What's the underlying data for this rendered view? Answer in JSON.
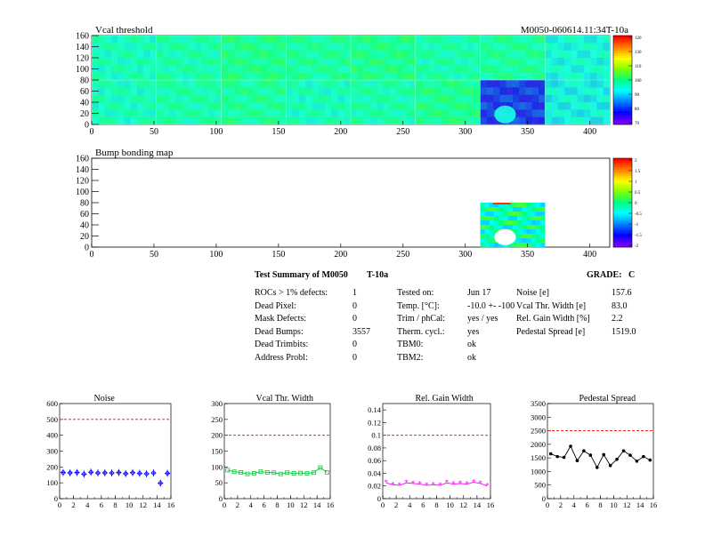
{
  "module_id": "M0050-060614.11:34T-10a",
  "chart_data": [
    {
      "type": "heatmap",
      "title": "Vcal threshold",
      "xlim": [
        0,
        416
      ],
      "ylim": [
        0,
        160
      ],
      "x_ticks": [
        0,
        50,
        100,
        150,
        200,
        250,
        300,
        350,
        400
      ],
      "y_ticks": [
        0,
        20,
        40,
        60,
        80,
        100,
        120,
        140,
        160
      ],
      "color_scale": {
        "ticks": [
          "120",
          "130",
          "110",
          "100",
          "90",
          "80",
          "70"
        ],
        "stops": [
          "#ff0000",
          "#ff8000",
          "#ffff00",
          "#80ff00",
          "#00ff80",
          "#00ffff",
          "#0080ff",
          "#0000ff",
          "#8000ff"
        ]
      },
      "rocs": [
        {
          "roc": 0,
          "value": 95
        },
        {
          "roc": 1,
          "value": 96
        },
        {
          "roc": 2,
          "value": 97
        },
        {
          "roc": 3,
          "value": 95
        },
        {
          "roc": 4,
          "value": 96
        },
        {
          "roc": 5,
          "value": 98
        },
        {
          "roc": 6,
          "value": 80
        },
        {
          "roc": 7,
          "value": 92
        },
        {
          "roc": 8,
          "value": 93
        },
        {
          "roc": 9,
          "value": 97
        },
        {
          "roc": 10,
          "value": 96
        },
        {
          "roc": 11,
          "value": 98
        },
        {
          "roc": 12,
          "value": 97
        },
        {
          "roc": 13,
          "value": 98
        },
        {
          "roc": 14,
          "value": 96
        },
        {
          "roc": 15,
          "value": 95
        }
      ]
    },
    {
      "type": "heatmap",
      "title": "Bump bonding map",
      "xlim": [
        0,
        416
      ],
      "ylim": [
        0,
        160
      ],
      "x_ticks": [
        0,
        50,
        100,
        150,
        200,
        250,
        300,
        350,
        400
      ],
      "y_ticks": [
        0,
        20,
        40,
        60,
        80,
        100,
        120,
        140,
        160
      ],
      "color_scale": {
        "ticks": [
          "2",
          "1.5",
          "1",
          "0.5",
          "0",
          "-0.5",
          "-1",
          "-1.5",
          "-2"
        ],
        "stops": [
          "#ff0000",
          "#ff8000",
          "#ffff00",
          "#80ff00",
          "#00ff80",
          "#00ffff",
          "#0080ff",
          "#0000ff",
          "#8000ff"
        ]
      }
    },
    {
      "type": "line",
      "title": "Noise",
      "x": [
        0,
        1,
        2,
        3,
        4,
        5,
        6,
        7,
        8,
        9,
        10,
        11,
        12,
        13,
        14,
        15
      ],
      "values": [
        165,
        163,
        165,
        155,
        167,
        162,
        163,
        162,
        165,
        158,
        164,
        160,
        157,
        162,
        98,
        160
      ],
      "xlim": [
        0,
        16
      ],
      "ylim": [
        0,
        600
      ],
      "x_ticks": [
        0,
        2,
        4,
        6,
        8,
        10,
        12,
        14,
        16
      ],
      "y_ticks": [
        0,
        100,
        200,
        300,
        400,
        500,
        600
      ],
      "threshold": 500,
      "color": "#0000ff",
      "marker": "diamond",
      "connected": false
    },
    {
      "type": "line",
      "title": "Vcal Thr. Width",
      "x": [
        0,
        1,
        2,
        3,
        4,
        5,
        6,
        7,
        8,
        9,
        10,
        11,
        12,
        13,
        14,
        15
      ],
      "values": [
        90,
        85,
        83,
        78,
        80,
        85,
        83,
        82,
        78,
        82,
        80,
        81,
        80,
        82,
        98,
        83
      ],
      "xlim": [
        0,
        16
      ],
      "ylim": [
        0,
        300
      ],
      "x_ticks": [
        0,
        2,
        4,
        6,
        8,
        10,
        12,
        14,
        16
      ],
      "y_ticks": [
        0,
        50,
        100,
        150,
        200,
        250,
        300
      ],
      "threshold": 200,
      "color": "#00cc33",
      "marker": "square",
      "connected": true
    },
    {
      "type": "line",
      "title": "Rel. Gain Width",
      "x": [
        0,
        1,
        2,
        3,
        4,
        5,
        6,
        7,
        8,
        9,
        10,
        11,
        12,
        13,
        14,
        15
      ],
      "values": [
        0.025,
        0.022,
        0.021,
        0.025,
        0.024,
        0.023,
        0.021,
        0.022,
        0.021,
        0.025,
        0.023,
        0.024,
        0.023,
        0.026,
        0.024,
        0.02
      ],
      "xlim": [
        0,
        16
      ],
      "ylim": [
        0,
        0.15
      ],
      "x_ticks": [
        0,
        2,
        4,
        6,
        8,
        10,
        12,
        14,
        16
      ],
      "y_ticks": [
        0,
        0.02,
        0.04,
        0.06,
        0.08,
        0.1,
        0.12,
        0.14
      ],
      "y_tick_labels": [
        "0",
        "0.02",
        "0.04",
        "0.06",
        "0.08",
        "0.1",
        "0.12",
        "0.14"
      ],
      "threshold": 0.1,
      "color": "#ff00ff",
      "marker": "star",
      "connected": true
    },
    {
      "type": "line",
      "title": "Pedestal Spread",
      "x": [
        0,
        1,
        2,
        3,
        4,
        5,
        6,
        7,
        8,
        9,
        10,
        11,
        12,
        13,
        14,
        15
      ],
      "values": [
        1650,
        1550,
        1520,
        1930,
        1400,
        1760,
        1600,
        1150,
        1620,
        1220,
        1450,
        1760,
        1600,
        1380,
        1550,
        1420
      ],
      "xlim": [
        0,
        16
      ],
      "ylim": [
        0,
        3500
      ],
      "x_ticks": [
        0,
        2,
        4,
        6,
        8,
        10,
        12,
        14,
        16
      ],
      "y_ticks": [
        0,
        500,
        1000,
        1500,
        2000,
        2500,
        3000,
        3500
      ],
      "threshold": 2500,
      "color": "#000000",
      "marker": "circle",
      "connected": true
    }
  ],
  "summary": {
    "title": "Test Summary of M0050",
    "test_id": "T-10a",
    "grade_label": "GRADE:",
    "grade": "C",
    "col1": [
      {
        "label": "ROCs > 1% defects:",
        "value": "1"
      },
      {
        "label": "Dead Pixel:",
        "value": "0"
      },
      {
        "label": "Mask Defects:",
        "value": "0"
      },
      {
        "label": "Dead Bumps:",
        "value": "3557"
      },
      {
        "label": "Dead Trimbits:",
        "value": "0"
      },
      {
        "label": "Address Probl:",
        "value": "0"
      }
    ],
    "col2": [
      {
        "label": "Tested on:",
        "value": "Jun 17"
      },
      {
        "label": "Temp. [°C]:",
        "value": "-10.0 +- -100"
      },
      {
        "label": "Trim / phCal:",
        "value": "yes / yes"
      },
      {
        "label": "Therm. cycl.:",
        "value": "yes"
      },
      {
        "label": "TBM0:",
        "value": "ok"
      },
      {
        "label": "TBM2:",
        "value": "ok"
      }
    ],
    "col3": [
      {
        "label": "Noise [e]",
        "value": "157.6"
      },
      {
        "label": "Vcal Thr. Width [e]",
        "value": "83.0"
      },
      {
        "label": "Rel. Gain Width [%]",
        "value": "2.2"
      },
      {
        "label": "Pedestal Spread [e]",
        "value": "1519.0"
      }
    ]
  }
}
